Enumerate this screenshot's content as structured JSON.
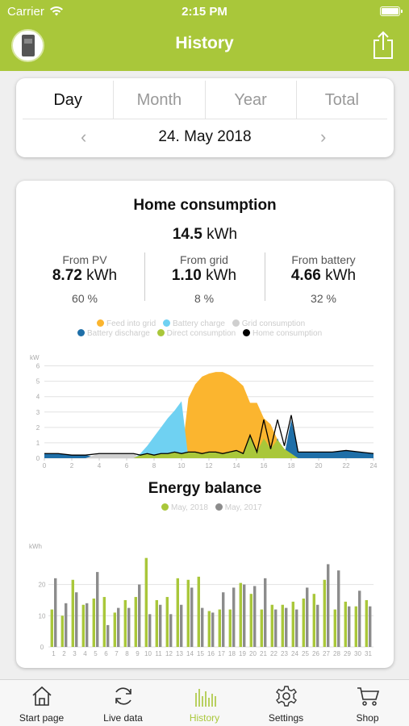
{
  "status": {
    "carrier": "Carrier",
    "time": "2:15 PM"
  },
  "nav": {
    "title": "History"
  },
  "tabs": [
    {
      "label": "Day"
    },
    {
      "label": "Month"
    },
    {
      "label": "Year"
    },
    {
      "label": "Total"
    }
  ],
  "date": {
    "label": "24. May 2018"
  },
  "home": {
    "title": "Home consumption",
    "total_value": "14.5",
    "total_unit": "kWh",
    "stats": [
      {
        "label": "From PV",
        "value": "8.72",
        "unit": "kWh",
        "percent": "60 %"
      },
      {
        "label": "From grid",
        "value": "1.10",
        "unit": "kWh",
        "percent": "8 %"
      },
      {
        "label": "From battery",
        "value": "4.66",
        "unit": "kWh",
        "percent": "32 %"
      }
    ]
  },
  "colors": {
    "brand": "#a9c73a",
    "feed": "#fbb52f",
    "battery_charge": "#6fd1f2",
    "grid": "#cfcfcf",
    "battery_discharge": "#1f6fa8",
    "direct": "#a9c73a",
    "home": "#000000",
    "y2017": "#8c8c8c"
  },
  "chart_data": [
    {
      "type": "area",
      "legend": [
        "Feed into grid",
        "Battery charge",
        "Grid consumption",
        "Battery discharge",
        "Direct consumption",
        "Home consumption"
      ],
      "ylabel": "kW",
      "ylim": [
        0,
        6.5
      ],
      "yticks": [
        0,
        1,
        2,
        3,
        4,
        5,
        6
      ],
      "xticks": [
        0,
        2,
        4,
        6,
        8,
        10,
        12,
        14,
        16,
        18,
        20,
        22,
        24
      ],
      "grid": true,
      "x": [
        0,
        1,
        2,
        3,
        4,
        5,
        6,
        6.5,
        7,
        7.5,
        8,
        8.5,
        9,
        9.5,
        10,
        10.5,
        11,
        11.5,
        12,
        12.5,
        13,
        13.5,
        14,
        14.5,
        15,
        15.5,
        16,
        16.5,
        17,
        17.5,
        18,
        18.5,
        19,
        19.5,
        20,
        21,
        22,
        23,
        24
      ],
      "series": [
        {
          "name": "Home consumption",
          "values": [
            0.3,
            0.3,
            0.2,
            0.2,
            0.3,
            0.3,
            0.3,
            0.3,
            0.2,
            0.3,
            0.2,
            0.3,
            0.3,
            0.4,
            0.3,
            0.4,
            0.4,
            0.3,
            0.4,
            0.4,
            0.3,
            0.4,
            0.5,
            0.3,
            1.5,
            0.4,
            2.5,
            0.6,
            2.5,
            0.8,
            2.8,
            0.4,
            0.4,
            0.4,
            0.4,
            0.4,
            0.5,
            0.4,
            0.3
          ]
        },
        {
          "name": "Direct consumption",
          "values": [
            0,
            0,
            0,
            0,
            0,
            0,
            0,
            0,
            0.2,
            0.3,
            0.2,
            0.3,
            0.3,
            0.4,
            0.3,
            0.4,
            0.4,
            0.3,
            0.4,
            0.4,
            0.3,
            0.4,
            0.5,
            0.3,
            1.5,
            0.4,
            1.3,
            0.6,
            1.2,
            0.6,
            0.3,
            0,
            0,
            0,
            0,
            0,
            0,
            0,
            0
          ]
        },
        {
          "name": "Battery charge",
          "values": [
            0,
            0,
            0,
            0,
            0,
            0,
            0,
            0,
            0.3,
            0.8,
            1.4,
            2.0,
            2.6,
            3.1,
            3.7,
            0,
            0,
            0,
            0,
            0,
            0,
            0,
            0,
            0,
            0,
            0,
            0,
            0,
            0,
            0,
            0,
            0,
            0,
            0,
            0,
            0,
            0,
            0,
            0
          ]
        },
        {
          "name": "Feed into grid",
          "values": [
            0,
            0,
            0,
            0,
            0,
            0,
            0,
            0,
            0,
            0,
            0,
            0,
            0,
            0,
            0,
            3.9,
            4.8,
            5.3,
            5.5,
            5.6,
            5.6,
            5.4,
            5.1,
            4.7,
            3.6,
            3.6,
            2.6,
            2.2,
            1.2,
            0.4,
            0,
            0,
            0,
            0,
            0,
            0,
            0,
            0,
            0
          ]
        },
        {
          "name": "Battery discharge",
          "values": [
            0.3,
            0.3,
            0.2,
            0.2,
            0,
            0,
            0,
            0,
            0,
            0,
            0,
            0,
            0,
            0,
            0,
            0,
            0,
            0,
            0,
            0,
            0,
            0,
            0,
            0,
            0,
            0,
            1.2,
            0,
            1.3,
            0.2,
            2.5,
            0.4,
            0.4,
            0.4,
            0.4,
            0.4,
            0.5,
            0.4,
            0.3
          ]
        },
        {
          "name": "Grid consumption",
          "values": [
            0,
            0,
            0,
            0,
            0.3,
            0.3,
            0.3,
            0.3,
            0,
            0,
            0,
            0,
            0,
            0,
            0,
            0,
            0,
            0,
            0,
            0,
            0,
            0,
            0,
            0,
            0,
            0,
            0,
            0,
            0,
            0,
            0,
            0,
            0,
            0,
            0,
            0,
            0,
            0,
            0
          ]
        }
      ]
    },
    {
      "type": "bar",
      "title": "Energy balance",
      "ylabel": "kWh",
      "ylim": [
        0,
        31
      ],
      "yticks": [
        0,
        10,
        20
      ],
      "categories": [
        "1",
        "2",
        "3",
        "4",
        "5",
        "6",
        "7",
        "8",
        "9",
        "10",
        "11",
        "12",
        "13",
        "14",
        "15",
        "16",
        "17",
        "18",
        "19",
        "20",
        "21",
        "22",
        "23",
        "24",
        "25",
        "26",
        "27",
        "28",
        "29",
        "30",
        "31"
      ],
      "grid": true,
      "series": [
        {
          "name": "May, 2018",
          "values": [
            12,
            10,
            21.5,
            13.5,
            15.5,
            16,
            11,
            15,
            16,
            28.5,
            15,
            16,
            22,
            21.5,
            22.5,
            11.5,
            12,
            12,
            20.5,
            17,
            12,
            13.5,
            13.5,
            14.5,
            15.5,
            17,
            21.5,
            12,
            14.5,
            13,
            15
          ]
        },
        {
          "name": "May, 2017",
          "values": [
            22,
            14,
            17.5,
            14,
            24,
            7,
            12.5,
            12.5,
            20,
            10.5,
            13.5,
            10.5,
            13.5,
            19,
            12.5,
            11,
            17.5,
            19,
            20,
            19.5,
            22,
            12,
            12.5,
            12,
            19,
            13.5,
            26.5,
            24.5,
            13,
            18,
            13
          ]
        }
      ]
    }
  ],
  "tabbar": [
    {
      "label": "Start page",
      "icon": "home-icon"
    },
    {
      "label": "Live data",
      "icon": "refresh-icon"
    },
    {
      "label": "History",
      "icon": "history-icon"
    },
    {
      "label": "Settings",
      "icon": "gear-icon"
    },
    {
      "label": "Shop",
      "icon": "cart-icon"
    }
  ]
}
